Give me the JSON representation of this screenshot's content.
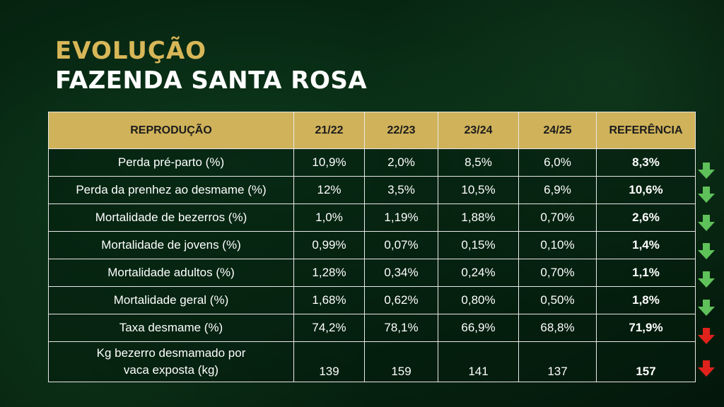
{
  "header": {
    "line1": "EVOLUÇÃO",
    "line2": "FAZENDA SANTA ROSA"
  },
  "table": {
    "columns": [
      "REPRODUÇÃO",
      "21/22",
      "22/23",
      "23/24",
      "24/25",
      "REFERÊNCIA"
    ],
    "rows": [
      {
        "label": "Perda pré-parto (%)",
        "values": [
          "10,9%",
          "2,0%",
          "8,5%",
          "6,0%"
        ],
        "ref": "8,3%",
        "trend": "down",
        "trend_color": "#5fc15a"
      },
      {
        "label": "Perda da prenhez ao desmame (%)",
        "values": [
          "12%",
          "3,5%",
          "10,5%",
          "6,9%"
        ],
        "ref": "10,6%",
        "trend": "down",
        "trend_color": "#5fc15a"
      },
      {
        "label": "Mortalidade de bezerros (%)",
        "values": [
          "1,0%",
          "1,19%",
          "1,88%",
          "0,70%"
        ],
        "ref": "2,6%",
        "trend": "down",
        "trend_color": "#5fc15a"
      },
      {
        "label": "Mortalidade de jovens (%)",
        "values": [
          "0,99%",
          "0,07%",
          "0,15%",
          "0,10%"
        ],
        "ref": "1,4%",
        "trend": "down",
        "trend_color": "#5fc15a"
      },
      {
        "label": "Mortalidade adultos (%)",
        "values": [
          "1,28%",
          "0,34%",
          "0,24%",
          "0,70%"
        ],
        "ref": "1,1%",
        "trend": "down",
        "trend_color": "#5fc15a"
      },
      {
        "label": "Mortalidade geral (%)",
        "values": [
          "1,68%",
          "0,62%",
          "0,80%",
          "0,50%"
        ],
        "ref": "1,8%",
        "trend": "down",
        "trend_color": "#5fc15a"
      },
      {
        "label": "Taxa desmame (%)",
        "values": [
          "74,2%",
          "78,1%",
          "66,9%",
          "68,8%"
        ],
        "ref": "71,9%",
        "trend": "down",
        "trend_color": "#e0221c"
      },
      {
        "label_line1": "Kg bezerro desmamado por",
        "label_line2": "vaca exposta (kg)",
        "values": [
          "139",
          "159",
          "141",
          "137"
        ],
        "ref": "157",
        "trend": "down",
        "trend_color": "#e0221c"
      }
    ]
  }
}
